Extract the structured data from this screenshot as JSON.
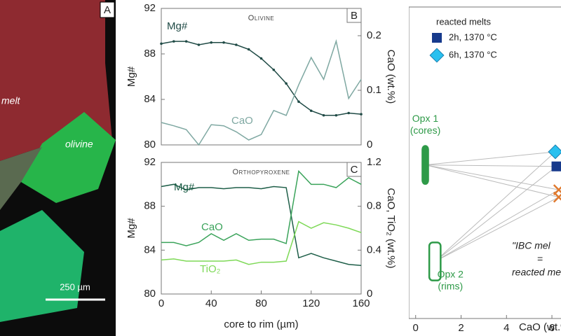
{
  "image_panel": {
    "label": "A",
    "texts": [
      "melt",
      "olivine"
    ],
    "scale_bar": "250 µm"
  },
  "chart_data": [
    {
      "type": "line",
      "panel": "B",
      "title": "Olivine",
      "ylabel": "Mg#",
      "y2label": "CaO (wt.%)",
      "x": [
        0,
        10,
        20,
        30,
        40,
        50,
        60,
        70,
        80,
        90,
        100,
        110,
        120,
        130,
        140,
        150,
        160
      ],
      "xlim": [
        0,
        160
      ],
      "ylim": [
        80,
        92
      ],
      "yticks": [
        80,
        84,
        88,
        92
      ],
      "y2lim": [
        0,
        0.25
      ],
      "y2ticks": [
        0,
        0.1,
        0.2
      ],
      "series": [
        {
          "name": "Mg#",
          "color": "#1f4a45",
          "markers": true,
          "values": [
            88.9,
            89.1,
            89.1,
            88.8,
            89.0,
            89.0,
            88.8,
            88.4,
            87.6,
            86.6,
            85.4,
            83.8,
            83.0,
            82.6,
            82.6,
            82.8,
            82.7
          ]
        },
        {
          "name": "CaO",
          "color": "#7fa8a2",
          "axis": "y2",
          "markers": false,
          "values": [
            0.041,
            0.035,
            0.028,
            0.0,
            0.037,
            0.035,
            0.024,
            0.009,
            0.019,
            0.063,
            0.054,
            0.11,
            0.16,
            0.12,
            0.19,
            0.085,
            0.12
          ]
        }
      ]
    },
    {
      "type": "line",
      "panel": "C",
      "title": "Orthopyroxene",
      "ylabel": "Mg#",
      "y2label": "CaO, TiO₂ (wt.%)",
      "xlabel": "core to rim (µm)",
      "x": [
        0,
        10,
        20,
        30,
        40,
        50,
        60,
        70,
        80,
        90,
        100,
        110,
        120,
        130,
        140,
        150,
        160
      ],
      "xlim": [
        0,
        160
      ],
      "xticks": [
        0,
        40,
        80,
        120,
        160
      ],
      "ylim": [
        80,
        92
      ],
      "yticks": [
        80,
        84,
        88,
        92
      ],
      "y2lim": [
        0,
        1.2
      ],
      "y2ticks": [
        0,
        0.4,
        0.8,
        1.2
      ],
      "series": [
        {
          "name": "Mg#",
          "color": "#1e5e48",
          "values": [
            89.8,
            90.0,
            89.5,
            89.7,
            89.7,
            89.6,
            89.7,
            89.7,
            89.6,
            89.8,
            89.7,
            83.3,
            83.7,
            83.3,
            83.0,
            82.7,
            82.6
          ]
        },
        {
          "name": "CaO",
          "color": "#3aa35a",
          "axis": "y2",
          "values": [
            0.47,
            0.47,
            0.44,
            0.47,
            0.55,
            0.49,
            0.55,
            0.49,
            0.5,
            0.5,
            0.46,
            1.12,
            1.0,
            1.0,
            0.97,
            1.06,
            1.0
          ]
        },
        {
          "name": "TiO₂",
          "color": "#7ed957",
          "axis": "y2",
          "values": [
            0.31,
            0.32,
            0.3,
            0.3,
            0.3,
            0.3,
            0.31,
            0.27,
            0.29,
            0.29,
            0.3,
            0.66,
            0.6,
            0.65,
            0.63,
            0.6,
            0.56
          ]
        }
      ]
    },
    {
      "type": "scatter",
      "xlabel": "CaO (wt.%",
      "xlim": [
        -0.3,
        6.4
      ],
      "xticks": [
        0,
        2,
        4,
        6
      ],
      "ylim": [
        79.4,
        100.7
      ],
      "legend_title": "reacted melts",
      "series": [
        {
          "name": "2h, 1370 °C",
          "color": "#173a8c",
          "marker": "square",
          "x": [
            6.2
          ],
          "values": [
            89.8
          ]
        },
        {
          "name": "6h, 1370 °C",
          "color": "#29c0ef",
          "marker": "diamond",
          "x": [
            6.15
          ],
          "values": [
            90.8
          ]
        },
        {
          "color": "#e07a2f",
          "marker": "cross",
          "x": [
            6.3,
            6.3
          ],
          "values": [
            88.2,
            87.7
          ]
        }
      ],
      "regions": [
        {
          "label": "Opx 1",
          "sublabel": "(cores)",
          "color": "#2e9a48",
          "filled": true,
          "x": [
            0.3,
            0.55
          ],
          "y": [
            88.6,
            91.2
          ]
        },
        {
          "label": "Opx 2",
          "sublabel": "(rims)",
          "color": "#2e9a48",
          "filled": false,
          "x": [
            0.6,
            1.1
          ],
          "y": [
            82.0,
            84.6
          ]
        }
      ],
      "annotations": [
        "\"IBC mel",
        "=",
        "reacted me"
      ]
    }
  ]
}
